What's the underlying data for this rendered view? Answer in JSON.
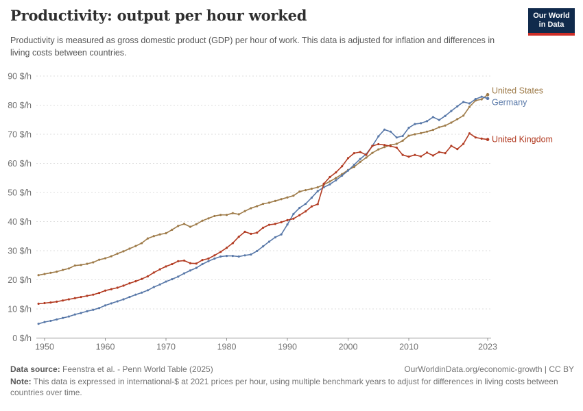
{
  "header": {
    "title": "Productivity: output per hour worked",
    "subtitle": "Productivity is measured as gross domestic product (GDP) per hour of work. This data is adjusted for inflation and differences in living costs between countries.",
    "logo": {
      "line1": "Our World",
      "line2": "in Data",
      "bg_color": "#102A4C",
      "bar_color": "#CD2D27"
    }
  },
  "chart_data": {
    "type": "line",
    "title": "Productivity: output per hour worked",
    "unit": "$/h",
    "ylim": [
      0,
      90
    ],
    "yticks": [
      0,
      10,
      20,
      30,
      40,
      50,
      60,
      70,
      80,
      90
    ],
    "ytick_suffix": " $/h",
    "xticks": [
      1950,
      1960,
      1970,
      1980,
      1990,
      2000,
      2010,
      2023
    ],
    "grid": "horizontal-dashed",
    "legend_position": "right-of-line-ends",
    "years": [
      1949,
      1950,
      1951,
      1952,
      1953,
      1954,
      1955,
      1956,
      1957,
      1958,
      1959,
      1960,
      1961,
      1962,
      1963,
      1964,
      1965,
      1966,
      1967,
      1968,
      1969,
      1970,
      1971,
      1972,
      1973,
      1974,
      1975,
      1976,
      1977,
      1978,
      1979,
      1980,
      1981,
      1982,
      1983,
      1984,
      1985,
      1986,
      1987,
      1988,
      1989,
      1990,
      1991,
      1992,
      1993,
      1994,
      1995,
      1996,
      1997,
      1998,
      1999,
      2000,
      2001,
      2002,
      2003,
      2004,
      2005,
      2006,
      2007,
      2008,
      2009,
      2010,
      2011,
      2012,
      2013,
      2014,
      2015,
      2016,
      2017,
      2018,
      2019,
      2020,
      2021,
      2022,
      2023
    ],
    "series": [
      {
        "name": "United States",
        "color": "#9E7B49",
        "values": [
          21.6,
          22.0,
          22.4,
          22.8,
          23.4,
          23.9,
          24.9,
          25.1,
          25.5,
          26.0,
          26.9,
          27.4,
          28.1,
          29.0,
          29.8,
          30.7,
          31.6,
          32.6,
          34.2,
          35.0,
          35.6,
          36.0,
          37.2,
          38.5,
          39.2,
          38.2,
          39.1,
          40.3,
          41.1,
          41.9,
          42.3,
          42.3,
          42.9,
          42.5,
          43.6,
          44.6,
          45.3,
          46.1,
          46.5,
          47.1,
          47.7,
          48.3,
          48.9,
          50.3,
          50.8,
          51.3,
          51.8,
          52.7,
          53.8,
          55.0,
          56.3,
          57.7,
          58.8,
          60.5,
          62.0,
          63.6,
          64.8,
          65.6,
          66.3,
          66.7,
          67.8,
          69.5,
          70.0,
          70.4,
          70.9,
          71.5,
          72.4,
          73.0,
          74.0,
          75.2,
          76.4,
          79.4,
          81.6,
          82.0,
          83.6
        ]
      },
      {
        "name": "Germany",
        "color": "#5878A8",
        "values": [
          4.9,
          5.5,
          5.9,
          6.4,
          6.9,
          7.4,
          8.1,
          8.6,
          9.2,
          9.7,
          10.3,
          11.2,
          11.9,
          12.6,
          13.3,
          14.1,
          14.9,
          15.6,
          16.4,
          17.5,
          18.4,
          19.4,
          20.2,
          21.1,
          22.2,
          23.2,
          24.1,
          25.4,
          26.4,
          27.3,
          28.0,
          28.2,
          28.2,
          28.0,
          28.4,
          28.7,
          29.9,
          31.5,
          33.1,
          34.6,
          35.6,
          39.0,
          42.6,
          44.7,
          46.1,
          48.2,
          50.5,
          51.8,
          52.8,
          54.2,
          55.8,
          57.5,
          59.5,
          61.5,
          63.2,
          66.0,
          69.3,
          71.6,
          70.9,
          68.9,
          69.4,
          72.2,
          73.5,
          73.8,
          74.5,
          75.9,
          74.9,
          76.3,
          78.0,
          79.6,
          81.1,
          80.6,
          82.1,
          82.9,
          82.3
        ]
      },
      {
        "name": "United Kingdom",
        "color": "#B23B22",
        "values": [
          11.8,
          12.0,
          12.2,
          12.5,
          12.9,
          13.3,
          13.7,
          14.1,
          14.5,
          14.9,
          15.5,
          16.3,
          16.8,
          17.3,
          18.0,
          18.8,
          19.5,
          20.3,
          21.2,
          22.5,
          23.6,
          24.6,
          25.4,
          26.4,
          26.6,
          25.7,
          25.6,
          26.8,
          27.3,
          28.4,
          29.6,
          31.0,
          32.6,
          34.8,
          36.5,
          35.8,
          36.2,
          37.9,
          38.9,
          39.2,
          39.8,
          40.5,
          41.0,
          42.2,
          43.5,
          45.2,
          46.0,
          53.0,
          55.3,
          56.9,
          59.0,
          61.8,
          63.5,
          63.9,
          62.9,
          66.0,
          66.6,
          66.3,
          65.9,
          65.4,
          62.9,
          62.3,
          62.9,
          62.4,
          63.7,
          62.7,
          63.9,
          63.5,
          66.0,
          64.9,
          66.7,
          70.3,
          68.9,
          68.5,
          68.2
        ]
      }
    ]
  },
  "footer": {
    "datasource_label": "Data source:",
    "datasource_text": " Feenstra et al. - Penn World Table (2025)",
    "link": "OurWorldinData.org/economic-growth | CC BY",
    "note_label": "Note:",
    "note_text": " This data is expressed in international-$ at 2021 prices per hour, using multiple benchmark years to adjust for differences in living costs between countries over time."
  }
}
